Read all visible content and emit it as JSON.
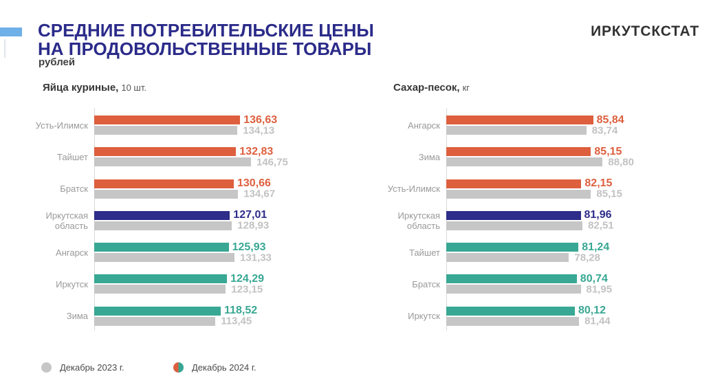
{
  "header": {
    "title_line1": "СРЕДНИЕ ПОТРЕБИТЕЛЬСКИЕ ЦЕНЫ",
    "title_line2": "НА ПРОДОВОЛЬСТВЕННЫЕ ТОВАРЫ",
    "subtitle": "рублей",
    "org": "ИРКУТСКСТАТ"
  },
  "colors": {
    "accent_bar": "#6fb0e8",
    "title_blue": "#2b2b8a",
    "orange": "#dd5f3e",
    "navy": "#2e2d89",
    "teal": "#38a793",
    "bar_gray": "#c6c6c6",
    "value_gray": "#c2c2c2",
    "label_gray": "#999999"
  },
  "legend": [
    {
      "label": "Декабрь 2023 г.",
      "marker": "gray-circle"
    },
    {
      "label": "Декабрь 2024 г.",
      "marker": "split-orange-teal-circle"
    }
  ],
  "chart_data": [
    {
      "type": "bar",
      "orientation": "horizontal",
      "title": "Яйца куриные,",
      "unit": "10 шт.",
      "axis": {
        "min": 0,
        "max": 150
      },
      "grid": false,
      "value_labels": true,
      "categories": [
        "Усть-Илимск",
        "Тайшет",
        "Братск",
        "Иркутская область",
        "Ангарск",
        "Иркутск",
        "Зима"
      ],
      "category_groups": [
        "orange",
        "orange",
        "orange",
        "navy",
        "teal",
        "teal",
        "teal"
      ],
      "series": [
        {
          "name": "Декабрь 2024 г.",
          "values": [
            136.63,
            132.83,
            130.66,
            127.01,
            125.93,
            124.29,
            118.52
          ]
        },
        {
          "name": "Декабрь 2023 г.",
          "values": [
            134.13,
            146.75,
            134.67,
            128.93,
            131.33,
            123.15,
            113.45
          ]
        }
      ]
    },
    {
      "type": "bar",
      "orientation": "horizontal",
      "title": "Сахар-песок,",
      "unit": "кг",
      "axis": {
        "min": 40,
        "max": 90
      },
      "grid": false,
      "value_labels": true,
      "categories": [
        "Ангарск",
        "Зима",
        "Усть-Илимск",
        "Иркутская область",
        "Тайшет",
        "Братск",
        "Иркутск"
      ],
      "category_groups": [
        "orange",
        "orange",
        "orange",
        "navy",
        "teal",
        "teal",
        "teal"
      ],
      "series": [
        {
          "name": "Декабрь 2024 г.",
          "values": [
            85.84,
            85.15,
            82.15,
            81.96,
            81.24,
            80.74,
            80.12
          ]
        },
        {
          "name": "Декабрь 2023 г.",
          "values": [
            83.74,
            88.8,
            85.15,
            82.51,
            78.28,
            81.95,
            81.44
          ]
        }
      ]
    }
  ]
}
